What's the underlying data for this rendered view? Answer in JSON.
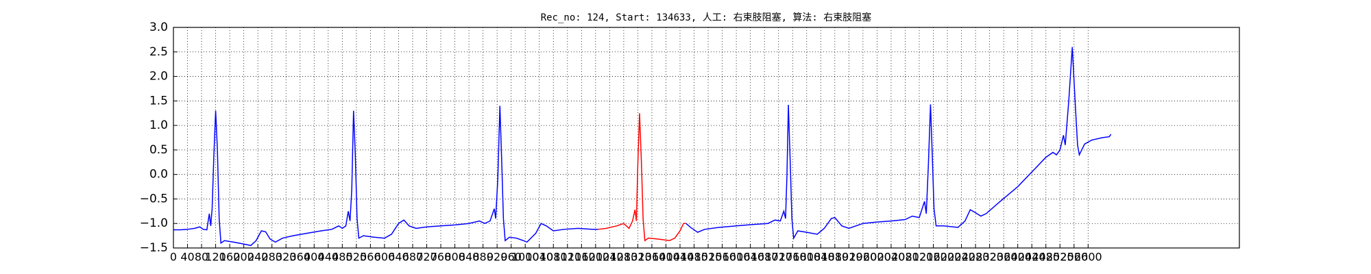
{
  "chart_data": {
    "type": "line",
    "title": "Rec_no: 124, Start: 134633, 人工: 右束肢阻塞, 算法: 右束肢阻塞",
    "xlim": [
      0,
      3030
    ],
    "xticks": [
      0,
      40,
      80,
      120,
      160,
      200,
      240,
      280,
      320,
      360,
      400,
      440,
      480,
      520,
      560,
      600,
      640,
      680,
      720,
      760,
      800,
      840,
      880,
      920,
      960,
      1000,
      1040,
      1080,
      1120,
      1160,
      1200,
      1240,
      1280,
      1320,
      1360,
      1400,
      1440,
      1480,
      1520,
      1560,
      1600,
      1640,
      1680,
      1720,
      1760,
      1800,
      1840,
      1880,
      1920,
      1960,
      2000,
      2040,
      2080,
      2120,
      2160,
      2200,
      2240,
      2280,
      2320,
      2360,
      2400,
      2440,
      2480,
      2520,
      2560,
      2600
    ],
    "ylim": [
      -1.5,
      3.0
    ],
    "yticks": [
      {
        "value": -1.5,
        "label": "−1.5"
      },
      {
        "value": -1.0,
        "label": "−1.0"
      },
      {
        "value": -0.5,
        "label": "−0.5"
      },
      {
        "value": 0,
        "label": "0.0"
      },
      0.5,
      {
        "value": 1,
        "label": "1.0"
      },
      1.5,
      {
        "value": 2,
        "label": "2.0"
      },
      2.5,
      {
        "value": 3,
        "label": "3.0"
      }
    ],
    "grid": true,
    "series": [
      {
        "color": "#0000ff",
        "x": [
          0,
          20,
          40,
          60,
          75,
          85,
          95,
          102,
          106,
          110,
          115,
          120,
          125,
          130,
          135,
          145,
          170,
          200,
          220,
          235,
          250,
          262,
          275,
          290,
          310,
          340,
          380,
          420,
          450,
          470,
          480,
          490,
          497,
          502,
          507,
          512,
          517,
          522,
          527,
          540,
          570,
          600,
          620,
          640,
          655,
          670,
          690,
          720,
          760,
          800,
          840,
          870,
          885,
          900,
          912,
          916,
          922,
          928,
          933,
          938,
          943,
          955,
          975,
          995,
          1005,
          1030,
          1045,
          1060,
          1080,
          1110,
          1150,
          1190,
          1207,
          1330,
          1457,
          1470,
          1490,
          1510,
          1550,
          1600,
          1650,
          1690,
          1710,
          1725,
          1735,
          1740,
          1744,
          1748,
          1753,
          1758,
          1763,
          1775,
          1800,
          1830,
          1850,
          1870,
          1880,
          1900,
          1920,
          1960,
          2000,
          2040,
          2080,
          2100,
          2120,
          2135,
          2140,
          2146,
          2152,
          2157,
          2162,
          2168,
          2190,
          2230,
          2250,
          2265,
          2280,
          2295,
          2310,
          2350,
          2400,
          2440,
          2480,
          2500,
          2510,
          2520,
          2530,
          2535,
          2545,
          2555,
          2563,
          2570,
          2575,
          2590,
          2610,
          2640,
          2660,
          2665
        ],
        "values": [
          -1.13,
          -1.13,
          -1.12,
          -1.1,
          -1.07,
          -1.12,
          -1.13,
          -0.8,
          -1.05,
          -0.7,
          0.4,
          1.3,
          0.5,
          -0.9,
          -1.4,
          -1.35,
          -1.38,
          -1.42,
          -1.45,
          -1.35,
          -1.15,
          -1.17,
          -1.32,
          -1.38,
          -1.3,
          -1.25,
          -1.2,
          -1.15,
          -1.12,
          -1.05,
          -1.1,
          -1.05,
          -0.75,
          -0.95,
          -0.3,
          1.3,
          0.4,
          -0.9,
          -1.3,
          -1.25,
          -1.28,
          -1.3,
          -1.22,
          -1.0,
          -0.93,
          -1.05,
          -1.1,
          -1.07,
          -1.05,
          -1.03,
          -1.0,
          -0.95,
          -1.0,
          -0.95,
          -0.7,
          -0.9,
          -0.1,
          1.4,
          0.3,
          -0.9,
          -1.35,
          -1.28,
          -1.3,
          -1.35,
          -1.38,
          -1.2,
          -1.0,
          -1.05,
          -1.15,
          -1.12,
          -1.1,
          -1.12,
          -1.12,
          null,
          -1.0,
          -1.08,
          -1.18,
          -1.12,
          -1.08,
          -1.05,
          -1.02,
          -1.0,
          -0.93,
          -0.95,
          -0.75,
          -0.9,
          0.0,
          1.42,
          0.3,
          -0.9,
          -1.3,
          -1.15,
          -1.18,
          -1.22,
          -1.1,
          -0.9,
          -0.88,
          -1.05,
          -1.1,
          -1.0,
          -0.97,
          -0.95,
          -0.92,
          -0.85,
          -0.88,
          -0.55,
          -0.8,
          0.2,
          1.43,
          0.4,
          -0.7,
          -1.05,
          -1.05,
          -1.08,
          -0.95,
          -0.72,
          -0.78,
          -0.85,
          -0.8,
          -0.55,
          -0.25,
          0.05,
          0.35,
          0.45,
          0.4,
          0.5,
          0.8,
          0.6,
          1.5,
          2.6,
          1.5,
          0.6,
          0.4,
          0.62,
          0.7,
          0.75,
          0.77,
          0.82
        ]
      },
      {
        "color": "#ff0000",
        "x": [
          1207,
          1230,
          1260,
          1280,
          1295,
          1305,
          1312,
          1316,
          1320,
          1325,
          1330,
          1335,
          1340,
          1350,
          1380,
          1410,
          1425,
          1440,
          1450,
          1457
        ],
        "values": [
          -1.12,
          -1.1,
          -1.05,
          -1.0,
          -1.1,
          -0.95,
          -0.72,
          -0.95,
          0.2,
          1.25,
          0.3,
          -0.9,
          -1.35,
          -1.3,
          -1.32,
          -1.35,
          -1.3,
          -1.15,
          -1.0,
          -1.0
        ]
      }
    ]
  }
}
